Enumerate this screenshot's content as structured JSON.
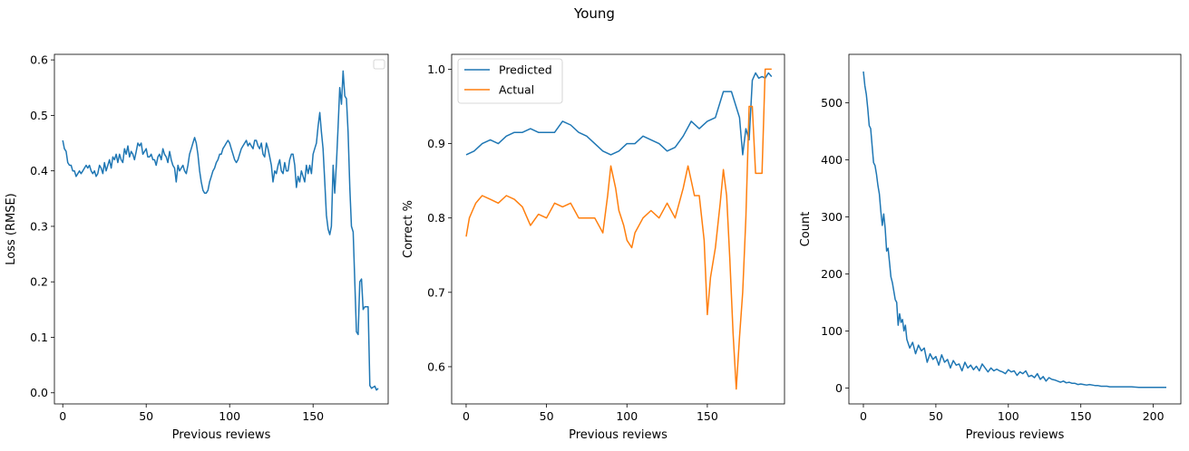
{
  "figure": {
    "title": "Young"
  },
  "chart_data": [
    {
      "type": "line",
      "xlabel": "Previous reviews",
      "ylabel": "Loss (RMSE)",
      "xlim": [
        -5,
        195
      ],
      "ylim": [
        -0.02,
        0.61
      ],
      "xticks": [
        0,
        50,
        100,
        150
      ],
      "yticks": [
        0.0,
        0.1,
        0.2,
        0.3,
        0.4,
        0.5,
        0.6
      ],
      "ytick_labels": [
        "0.0",
        "0.1",
        "0.2",
        "0.3",
        "0.4",
        "0.5",
        "0.6"
      ],
      "legend": {
        "placement": "top-right",
        "entries": []
      },
      "series": [
        {
          "color": "#1f77b4",
          "x": [
            0,
            1,
            2,
            3,
            4,
            5,
            6,
            7,
            8,
            9,
            10,
            11,
            12,
            13,
            14,
            15,
            16,
            17,
            18,
            19,
            20,
            21,
            22,
            23,
            24,
            25,
            26,
            27,
            28,
            29,
            30,
            31,
            32,
            33,
            34,
            35,
            36,
            37,
            38,
            39,
            40,
            41,
            42,
            43,
            44,
            45,
            46,
            47,
            48,
            49,
            50,
            51,
            52,
            53,
            54,
            55,
            56,
            57,
            58,
            59,
            60,
            61,
            62,
            63,
            64,
            65,
            66,
            67,
            68,
            69,
            70,
            71,
            72,
            73,
            74,
            75,
            76,
            77,
            78,
            79,
            80,
            81,
            82,
            83,
            84,
            85,
            86,
            87,
            88,
            89,
            90,
            91,
            92,
            93,
            94,
            95,
            96,
            97,
            98,
            99,
            100,
            101,
            102,
            103,
            104,
            105,
            106,
            107,
            108,
            109,
            110,
            111,
            112,
            113,
            114,
            115,
            116,
            117,
            118,
            119,
            120,
            121,
            122,
            123,
            124,
            125,
            126,
            127,
            128,
            129,
            130,
            131,
            132,
            133,
            134,
            135,
            136,
            137,
            138,
            139,
            140,
            141,
            142,
            143,
            144,
            145,
            146,
            147,
            148,
            149,
            150,
            151,
            152,
            153,
            154,
            155,
            156,
            157,
            158,
            159,
            160,
            161,
            162,
            163,
            164,
            165,
            166,
            167,
            168,
            169,
            170,
            171,
            172,
            173,
            174,
            175,
            176,
            177,
            178,
            179,
            180,
            181,
            182,
            183,
            184,
            185,
            186,
            187,
            188,
            189
          ],
          "y": [
            0.455,
            0.44,
            0.435,
            0.415,
            0.41,
            0.41,
            0.4,
            0.4,
            0.39,
            0.395,
            0.4,
            0.395,
            0.4,
            0.405,
            0.41,
            0.405,
            0.41,
            0.4,
            0.395,
            0.4,
            0.39,
            0.395,
            0.41,
            0.405,
            0.395,
            0.415,
            0.4,
            0.41,
            0.42,
            0.405,
            0.425,
            0.42,
            0.43,
            0.415,
            0.43,
            0.42,
            0.415,
            0.44,
            0.43,
            0.445,
            0.425,
            0.435,
            0.43,
            0.42,
            0.435,
            0.45,
            0.445,
            0.45,
            0.43,
            0.435,
            0.44,
            0.425,
            0.425,
            0.43,
            0.42,
            0.42,
            0.41,
            0.425,
            0.43,
            0.42,
            0.44,
            0.43,
            0.425,
            0.415,
            0.435,
            0.42,
            0.41,
            0.405,
            0.38,
            0.41,
            0.4,
            0.405,
            0.41,
            0.4,
            0.395,
            0.41,
            0.43,
            0.44,
            0.45,
            0.46,
            0.45,
            0.43,
            0.4,
            0.38,
            0.365,
            0.36,
            0.36,
            0.365,
            0.38,
            0.39,
            0.4,
            0.405,
            0.415,
            0.42,
            0.43,
            0.43,
            0.44,
            0.445,
            0.45,
            0.455,
            0.45,
            0.44,
            0.43,
            0.42,
            0.415,
            0.42,
            0.43,
            0.44,
            0.445,
            0.45,
            0.455,
            0.445,
            0.45,
            0.445,
            0.44,
            0.455,
            0.455,
            0.445,
            0.44,
            0.45,
            0.43,
            0.425,
            0.45,
            0.44,
            0.425,
            0.41,
            0.38,
            0.4,
            0.395,
            0.41,
            0.42,
            0.4,
            0.395,
            0.415,
            0.4,
            0.4,
            0.42,
            0.43,
            0.43,
            0.41,
            0.37,
            0.39,
            0.38,
            0.4,
            0.39,
            0.38,
            0.41,
            0.395,
            0.41,
            0.395,
            0.43,
            0.44,
            0.45,
            0.48,
            0.505,
            0.47,
            0.44,
            0.38,
            0.32,
            0.295,
            0.285,
            0.3,
            0.41,
            0.36,
            0.415,
            0.48,
            0.55,
            0.52,
            0.58,
            0.535,
            0.53,
            0.47,
            0.37,
            0.3,
            0.29,
            0.2,
            0.11,
            0.105,
            0.2,
            0.205,
            0.15,
            0.155,
            0.155,
            0.155,
            0.013,
            0.008,
            0.01,
            0.012,
            0.005,
            0.008
          ]
        }
      ]
    },
    {
      "type": "line",
      "xlabel": "Previous reviews",
      "ylabel": "Correct %",
      "xlim": [
        -9,
        198
      ],
      "ylim": [
        0.55,
        1.02
      ],
      "xticks": [
        0,
        50,
        100,
        150
      ],
      "yticks": [
        0.6,
        0.7,
        0.8,
        0.9,
        1.0
      ],
      "ytick_labels": [
        "0.6",
        "0.7",
        "0.8",
        "0.9",
        "1.0"
      ],
      "legend": {
        "placement": "top-left"
      },
      "series": [
        {
          "name": "Predicted",
          "color": "#1f77b4",
          "x": [
            0,
            5,
            10,
            15,
            20,
            25,
            30,
            35,
            40,
            45,
            50,
            55,
            60,
            65,
            70,
            75,
            80,
            85,
            90,
            95,
            100,
            105,
            110,
            115,
            120,
            125,
            130,
            135,
            140,
            145,
            150,
            155,
            160,
            165,
            170,
            172,
            174,
            176,
            178,
            180,
            182,
            184,
            186,
            188,
            190
          ],
          "y": [
            0.885,
            0.89,
            0.9,
            0.905,
            0.9,
            0.91,
            0.915,
            0.915,
            0.92,
            0.915,
            0.915,
            0.915,
            0.93,
            0.925,
            0.915,
            0.91,
            0.9,
            0.89,
            0.885,
            0.89,
            0.9,
            0.9,
            0.91,
            0.905,
            0.9,
            0.89,
            0.895,
            0.91,
            0.93,
            0.92,
            0.93,
            0.935,
            0.97,
            0.97,
            0.935,
            0.885,
            0.92,
            0.905,
            0.985,
            0.995,
            0.988,
            0.99,
            0.988,
            0.995,
            0.99
          ]
        },
        {
          "name": "Actual",
          "color": "#ff7f0e",
          "x": [
            0,
            2,
            4,
            6,
            8,
            10,
            15,
            20,
            25,
            30,
            35,
            40,
            45,
            50,
            55,
            60,
            65,
            70,
            75,
            80,
            85,
            88,
            90,
            93,
            95,
            98,
            100,
            103,
            105,
            110,
            115,
            120,
            125,
            130,
            135,
            138,
            140,
            142,
            145,
            148,
            150,
            152,
            155,
            158,
            160,
            162,
            164,
            166,
            168,
            170,
            172,
            174,
            176,
            177,
            178,
            180,
            182,
            184,
            186,
            190
          ],
          "y": [
            0.775,
            0.8,
            0.81,
            0.82,
            0.825,
            0.83,
            0.825,
            0.82,
            0.83,
            0.825,
            0.815,
            0.79,
            0.805,
            0.8,
            0.82,
            0.815,
            0.82,
            0.8,
            0.8,
            0.8,
            0.78,
            0.83,
            0.87,
            0.84,
            0.81,
            0.79,
            0.77,
            0.76,
            0.78,
            0.8,
            0.81,
            0.8,
            0.82,
            0.8,
            0.84,
            0.87,
            0.85,
            0.83,
            0.83,
            0.77,
            0.67,
            0.72,
            0.76,
            0.82,
            0.865,
            0.83,
            0.745,
            0.645,
            0.57,
            0.64,
            0.7,
            0.8,
            0.95,
            0.95,
            0.95,
            0.86,
            0.86,
            0.86,
            1.0,
            1.0
          ]
        }
      ]
    },
    {
      "type": "line",
      "xlabel": "Previous reviews",
      "ylabel": "Count",
      "xlim": [
        -10,
        219
      ],
      "ylim": [
        -28,
        585
      ],
      "xticks": [
        0,
        50,
        100,
        150,
        200
      ],
      "yticks": [
        0,
        100,
        200,
        300,
        400,
        500
      ],
      "ytick_labels": [
        "0",
        "100",
        "200",
        "300",
        "400",
        "500"
      ],
      "series": [
        {
          "color": "#1f77b4",
          "x": [
            0,
            1,
            2,
            3,
            4,
            5,
            6,
            7,
            8,
            9,
            10,
            11,
            12,
            13,
            14,
            15,
            16,
            17,
            18,
            19,
            20,
            21,
            22,
            23,
            24,
            25,
            26,
            27,
            28,
            29,
            30,
            32,
            34,
            36,
            38,
            40,
            42,
            44,
            46,
            48,
            50,
            52,
            54,
            56,
            58,
            60,
            62,
            64,
            66,
            68,
            70,
            72,
            74,
            76,
            78,
            80,
            82,
            84,
            86,
            88,
            90,
            92,
            94,
            96,
            98,
            100,
            102,
            104,
            106,
            108,
            110,
            112,
            114,
            116,
            118,
            120,
            122,
            124,
            126,
            128,
            130,
            132,
            134,
            136,
            138,
            140,
            142,
            144,
            146,
            148,
            150,
            152,
            154,
            156,
            158,
            160,
            162,
            164,
            166,
            168,
            170,
            175,
            180,
            185,
            190,
            195,
            200,
            205,
            209
          ],
          "y": [
            555,
            530,
            515,
            490,
            460,
            455,
            425,
            395,
            390,
            375,
            355,
            340,
            310,
            285,
            305,
            280,
            240,
            245,
            220,
            195,
            185,
            170,
            155,
            150,
            110,
            130,
            115,
            120,
            100,
            110,
            85,
            70,
            80,
            60,
            75,
            65,
            70,
            45,
            60,
            50,
            55,
            40,
            58,
            45,
            50,
            35,
            48,
            40,
            42,
            30,
            45,
            35,
            40,
            32,
            38,
            30,
            42,
            35,
            28,
            35,
            30,
            33,
            30,
            28,
            25,
            32,
            28,
            30,
            22,
            28,
            25,
            30,
            20,
            22,
            18,
            25,
            15,
            20,
            12,
            18,
            15,
            14,
            12,
            10,
            12,
            9,
            10,
            8,
            8,
            6,
            7,
            6,
            5,
            6,
            5,
            4,
            4,
            3,
            3,
            3,
            2,
            2,
            2,
            2,
            1,
            1,
            1,
            1,
            1
          ]
        }
      ]
    }
  ]
}
